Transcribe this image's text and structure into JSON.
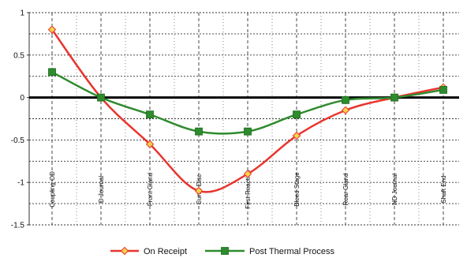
{
  "chart_data": {
    "type": "line",
    "categories": [
      "Coupling OD",
      "D Journal",
      "Front Gland",
      "Curtis Disc",
      "First Reaction",
      "Bleed Stage",
      "Rear Gland",
      "ND Journal",
      "Shaft End"
    ],
    "series": [
      {
        "name": "On Receipt",
        "color": "#e8352e",
        "marker_color": "#f6d34a",
        "marker": "diamond",
        "values": [
          0.8,
          0.0,
          -0.55,
          -1.1,
          -0.9,
          -0.45,
          -0.15,
          0.0,
          0.12
        ]
      },
      {
        "name": "Post Thermal Process",
        "color": "#2e8b2e",
        "marker_color": "#2e8b2e",
        "marker": "square",
        "values": [
          0.3,
          0.0,
          -0.2,
          -0.4,
          -0.4,
          -0.2,
          -0.03,
          0.0,
          0.09
        ]
      }
    ],
    "yticks": [
      "1",
      "0.5",
      "0",
      "-0.5",
      "-1",
      "-1.5"
    ],
    "ylim": [
      -1.5,
      1
    ],
    "grid": true,
    "legend_position": "bottom",
    "zero_line": true
  }
}
